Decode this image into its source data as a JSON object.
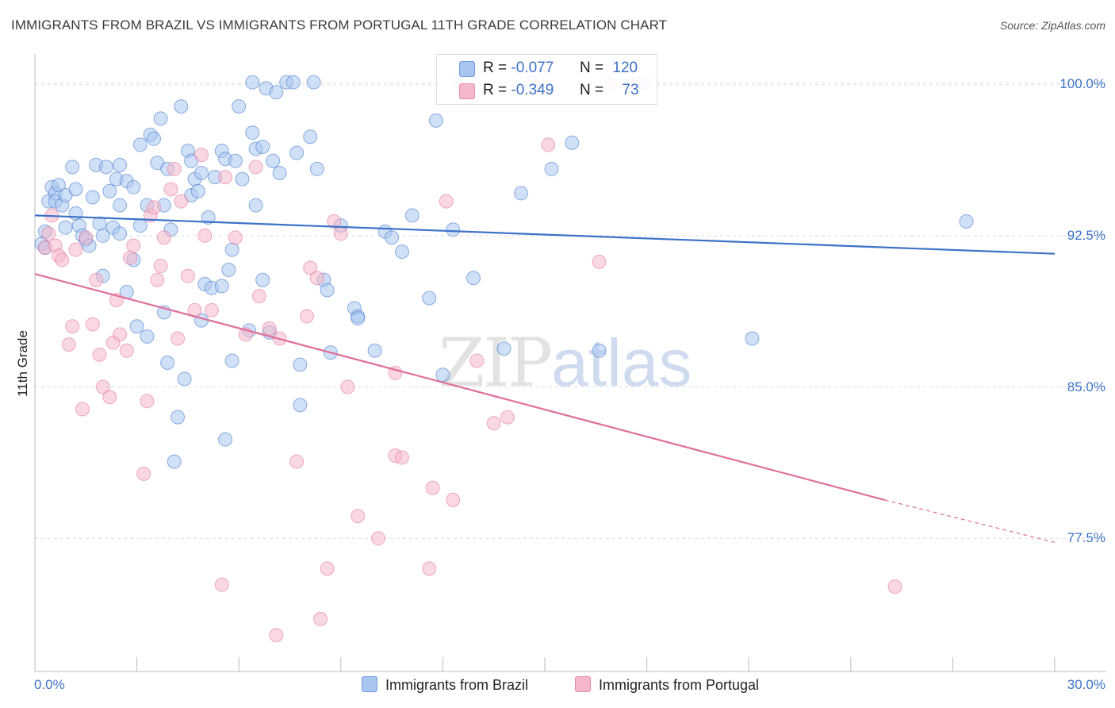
{
  "title": "IMMIGRANTS FROM BRAZIL VS IMMIGRANTS FROM PORTUGAL 11TH GRADE CORRELATION CHART",
  "source": "Source: ZipAtlas.com",
  "watermark": {
    "zip": "ZIP",
    "atlas": "atlas"
  },
  "legend_top": {
    "rows": [
      {
        "r_label": "R =",
        "r_value": "-0.077",
        "n_label": "N =",
        "n_value": "120",
        "color": "#a9c6f0"
      },
      {
        "r_label": "R =",
        "r_value": "-0.349",
        "n_label": "N =",
        "n_value": "73",
        "color": "#f5b8cb"
      }
    ]
  },
  "bottom_legend": [
    {
      "label": "Immigrants from Brazil",
      "color": "#a9c6f0"
    },
    {
      "label": "Immigrants from Portugal",
      "color": "#f5b8cb"
    }
  ],
  "chart_data": {
    "type": "scatter",
    "title": "IMMIGRANTS FROM BRAZIL VS IMMIGRANTS FROM PORTUGAL 11TH GRADE CORRELATION CHART",
    "xlabel": "",
    "ylabel": "11th Grade",
    "xlim": [
      0,
      30
    ],
    "ylim": [
      70.9,
      101.5
    ],
    "x_tick_labels": [
      "0.0%",
      "30.0%"
    ],
    "y_ticks": [
      100.0,
      92.5,
      85.0,
      77.5
    ],
    "y_tick_labels": [
      "100.0%",
      "92.5%",
      "85.0%",
      "77.5%"
    ],
    "grid": true,
    "series": [
      {
        "name": "Immigrants from Brazil",
        "color": "#3d72c8",
        "fill": "#a9c6f0",
        "trend": {
          "x": [
            0,
            30
          ],
          "y": [
            93.5,
            91.6
          ]
        },
        "points": [
          [
            0.2,
            92.1
          ],
          [
            0.3,
            91.9
          ],
          [
            0.3,
            92.7
          ],
          [
            0.4,
            94.2
          ],
          [
            0.5,
            94.9
          ],
          [
            0.6,
            94.6
          ],
          [
            0.6,
            94.2
          ],
          [
            0.7,
            95.0
          ],
          [
            0.8,
            94.0
          ],
          [
            0.9,
            94.5
          ],
          [
            0.9,
            92.9
          ],
          [
            1.1,
            95.9
          ],
          [
            1.2,
            94.8
          ],
          [
            1.2,
            93.6
          ],
          [
            1.3,
            93.0
          ],
          [
            1.4,
            92.5
          ],
          [
            1.5,
            92.3
          ],
          [
            1.6,
            92.0
          ],
          [
            1.7,
            94.4
          ],
          [
            1.8,
            96.0
          ],
          [
            1.9,
            93.1
          ],
          [
            2.0,
            90.5
          ],
          [
            2.0,
            92.5
          ],
          [
            2.1,
            95.9
          ],
          [
            2.2,
            94.7
          ],
          [
            2.3,
            92.9
          ],
          [
            2.4,
            95.3
          ],
          [
            2.5,
            94.0
          ],
          [
            2.5,
            96.0
          ],
          [
            2.5,
            92.6
          ],
          [
            2.7,
            89.7
          ],
          [
            2.7,
            95.2
          ],
          [
            2.9,
            91.3
          ],
          [
            2.9,
            94.9
          ],
          [
            3.0,
            88.0
          ],
          [
            3.1,
            97.0
          ],
          [
            3.1,
            93.0
          ],
          [
            3.3,
            94.0
          ],
          [
            3.3,
            87.5
          ],
          [
            3.4,
            97.5
          ],
          [
            3.5,
            97.3
          ],
          [
            3.6,
            96.1
          ],
          [
            3.7,
            98.3
          ],
          [
            3.8,
            94.0
          ],
          [
            3.8,
            88.7
          ],
          [
            3.9,
            95.8
          ],
          [
            3.9,
            86.2
          ],
          [
            4.0,
            92.8
          ],
          [
            4.2,
            83.5
          ],
          [
            4.3,
            98.9
          ],
          [
            4.1,
            81.3
          ],
          [
            4.4,
            85.4
          ],
          [
            4.5,
            96.7
          ],
          [
            4.6,
            96.2
          ],
          [
            4.6,
            94.5
          ],
          [
            4.7,
            95.3
          ],
          [
            4.8,
            94.7
          ],
          [
            4.9,
            95.6
          ],
          [
            4.9,
            88.3
          ],
          [
            5.0,
            90.1
          ],
          [
            5.1,
            93.4
          ],
          [
            5.2,
            89.9
          ],
          [
            5.3,
            95.4
          ],
          [
            5.5,
            90.0
          ],
          [
            5.5,
            96.7
          ],
          [
            5.6,
            96.3
          ],
          [
            5.7,
            90.8
          ],
          [
            5.8,
            86.3
          ],
          [
            5.8,
            91.8
          ],
          [
            5.9,
            96.2
          ],
          [
            6.0,
            98.9
          ],
          [
            6.1,
            95.3
          ],
          [
            6.3,
            87.8
          ],
          [
            6.4,
            97.6
          ],
          [
            6.5,
            96.8
          ],
          [
            6.5,
            94.0
          ],
          [
            6.7,
            96.9
          ],
          [
            6.7,
            90.3
          ],
          [
            6.8,
            99.8
          ],
          [
            6.9,
            87.7
          ],
          [
            7.0,
            96.2
          ],
          [
            7.1,
            99.6
          ],
          [
            7.2,
            95.6
          ],
          [
            7.4,
            100.1
          ],
          [
            7.6,
            100.1
          ],
          [
            7.7,
            96.6
          ],
          [
            7.8,
            86.1
          ],
          [
            7.8,
            84.1
          ],
          [
            8.1,
            97.4
          ],
          [
            8.3,
            95.8
          ],
          [
            8.5,
            90.3
          ],
          [
            8.6,
            89.8
          ],
          [
            8.7,
            86.7
          ],
          [
            9.0,
            93.0
          ],
          [
            9.4,
            88.9
          ],
          [
            9.5,
            88.5
          ],
          [
            9.5,
            88.4
          ],
          [
            10.0,
            86.8
          ],
          [
            10.3,
            92.7
          ],
          [
            10.5,
            92.4
          ],
          [
            10.8,
            91.7
          ],
          [
            11.1,
            93.5
          ],
          [
            11.6,
            89.4
          ],
          [
            11.8,
            98.2
          ],
          [
            12.0,
            85.6
          ],
          [
            12.3,
            92.8
          ],
          [
            12.9,
            90.4
          ],
          [
            13.8,
            86.9
          ],
          [
            14.3,
            94.6
          ],
          [
            15.2,
            95.8
          ],
          [
            15.8,
            97.1
          ],
          [
            16.6,
            86.8
          ],
          [
            17.9,
            100.1
          ],
          [
            21.1,
            87.4
          ],
          [
            27.4,
            93.2
          ],
          [
            12.5,
            100.1
          ],
          [
            14.6,
            100.1
          ],
          [
            6.4,
            100.1
          ],
          [
            8.2,
            100.1
          ],
          [
            5.6,
            82.4
          ]
        ]
      },
      {
        "name": "Immigrants from Portugal",
        "color": "#e0709a",
        "fill": "#f5b8cb",
        "trend": {
          "x": [
            0,
            25
          ],
          "y": [
            90.6,
            79.4
          ]
        },
        "trend_dashed": {
          "x": [
            25,
            30
          ],
          "y": [
            79.4,
            77.3
          ]
        },
        "points": [
          [
            0.3,
            91.9
          ],
          [
            0.4,
            92.6
          ],
          [
            0.5,
            93.5
          ],
          [
            0.6,
            92.0
          ],
          [
            0.7,
            91.5
          ],
          [
            0.8,
            91.3
          ],
          [
            1.0,
            87.1
          ],
          [
            1.1,
            88.0
          ],
          [
            1.2,
            91.8
          ],
          [
            1.4,
            83.9
          ],
          [
            1.5,
            92.4
          ],
          [
            1.7,
            88.1
          ],
          [
            1.8,
            90.3
          ],
          [
            1.9,
            86.6
          ],
          [
            2.0,
            85.0
          ],
          [
            2.2,
            84.5
          ],
          [
            2.3,
            87.2
          ],
          [
            2.4,
            89.3
          ],
          [
            2.5,
            87.6
          ],
          [
            2.7,
            86.8
          ],
          [
            2.8,
            91.4
          ],
          [
            2.9,
            92.0
          ],
          [
            3.2,
            80.7
          ],
          [
            3.3,
            84.3
          ],
          [
            3.4,
            93.5
          ],
          [
            3.5,
            93.9
          ],
          [
            3.6,
            90.3
          ],
          [
            3.7,
            91.0
          ],
          [
            3.8,
            92.4
          ],
          [
            4.0,
            94.8
          ],
          [
            4.1,
            95.8
          ],
          [
            4.2,
            87.4
          ],
          [
            4.3,
            94.2
          ],
          [
            4.5,
            90.5
          ],
          [
            4.7,
            88.8
          ],
          [
            4.9,
            96.5
          ],
          [
            5.0,
            92.5
          ],
          [
            5.2,
            88.8
          ],
          [
            5.5,
            75.2
          ],
          [
            5.6,
            95.4
          ],
          [
            5.9,
            92.4
          ],
          [
            6.2,
            87.6
          ],
          [
            6.5,
            95.9
          ],
          [
            6.6,
            89.5
          ],
          [
            6.9,
            87.9
          ],
          [
            7.1,
            72.7
          ],
          [
            7.2,
            87.4
          ],
          [
            7.7,
            81.3
          ],
          [
            8.0,
            88.5
          ],
          [
            8.1,
            90.9
          ],
          [
            8.3,
            90.4
          ],
          [
            8.4,
            73.5
          ],
          [
            8.6,
            76.0
          ],
          [
            8.8,
            93.2
          ],
          [
            9.0,
            92.6
          ],
          [
            9.2,
            85.0
          ],
          [
            9.5,
            78.6
          ],
          [
            10.1,
            77.5
          ],
          [
            10.6,
            85.7
          ],
          [
            10.6,
            81.6
          ],
          [
            10.8,
            81.5
          ],
          [
            11.6,
            76.0
          ],
          [
            11.7,
            80.0
          ],
          [
            12.1,
            94.2
          ],
          [
            12.3,
            79.4
          ],
          [
            13.0,
            86.3
          ],
          [
            13.5,
            83.2
          ],
          [
            13.9,
            83.5
          ],
          [
            15.1,
            97.0
          ],
          [
            16.9,
            100.0
          ],
          [
            17.6,
            100.0
          ],
          [
            16.6,
            91.2
          ],
          [
            25.3,
            75.1
          ]
        ]
      }
    ]
  }
}
